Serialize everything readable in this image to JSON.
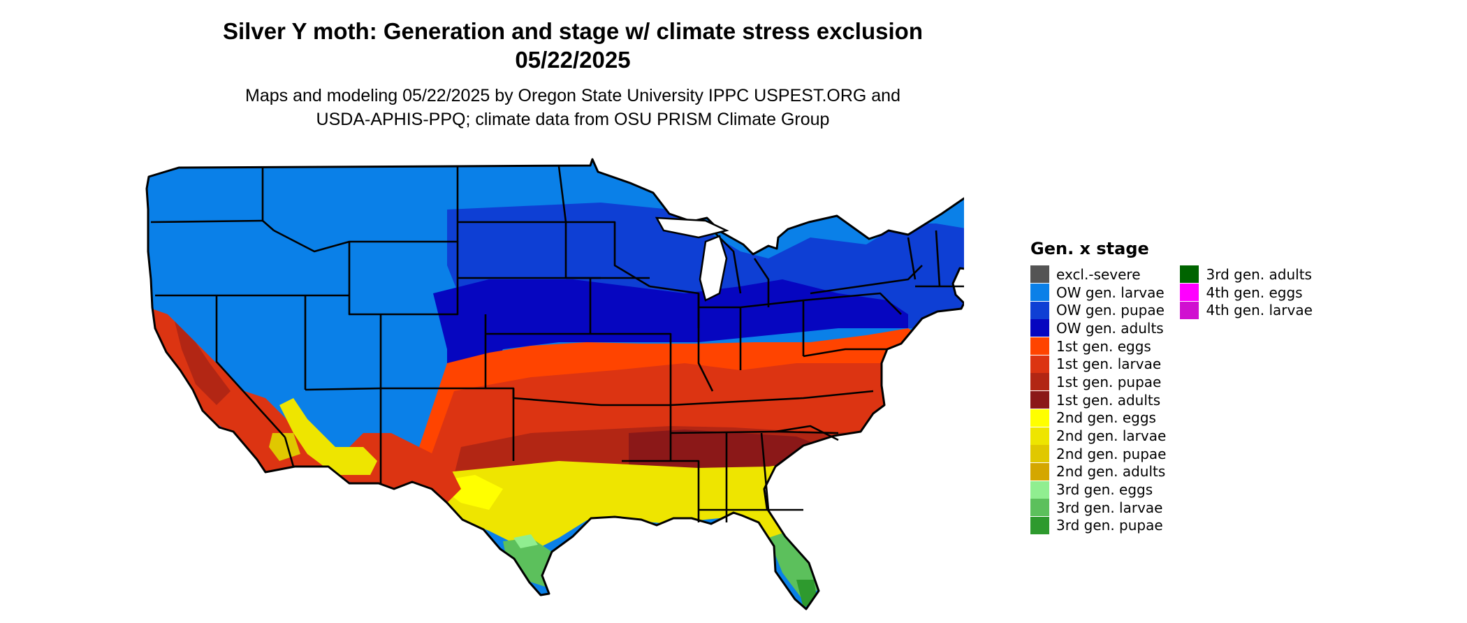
{
  "title_line1": "Silver Y moth: Generation and stage w/ climate stress exclusion",
  "title_line2": "05/22/2025",
  "subtitle_line1": "Maps and modeling 05/22/2025 by Oregon State University IPPC USPEST.ORG and",
  "subtitle_line2": "USDA-APHIS-PPQ; climate data from OSU PRISM Climate Group",
  "legend": {
    "title": "Gen. x stage",
    "items": [
      {
        "label": "excl.-severe",
        "color": "#545454"
      },
      {
        "label": "OW gen. larvae",
        "color": "#0a80e8"
      },
      {
        "label": "OW gen. pupae",
        "color": "#0e3fd4"
      },
      {
        "label": "OW gen. adults",
        "color": "#0606c0"
      },
      {
        "label": "1st gen. eggs",
        "color": "#ff4400"
      },
      {
        "label": "1st gen. larvae",
        "color": "#dc3412"
      },
      {
        "label": "1st gen. pupae",
        "color": "#b22614"
      },
      {
        "label": "1st gen. adults",
        "color": "#8b1818"
      },
      {
        "label": "2nd gen. eggs",
        "color": "#ffff00"
      },
      {
        "label": "2nd gen. larvae",
        "color": "#eee500"
      },
      {
        "label": "2nd gen. pupae",
        "color": "#e0c800"
      },
      {
        "label": "2nd gen. adults",
        "color": "#d4a700"
      },
      {
        "label": "3rd gen. eggs",
        "color": "#90ee90"
      },
      {
        "label": "3rd gen. larvae",
        "color": "#5cc05c"
      },
      {
        "label": "3rd gen. pupae",
        "color": "#2e9a2e"
      },
      {
        "label": "3rd gen. adults",
        "color": "#006400"
      },
      {
        "label": "4th gen. eggs",
        "color": "#ff00ff"
      },
      {
        "label": "4th gen. larvae",
        "color": "#d010d0"
      }
    ]
  }
}
